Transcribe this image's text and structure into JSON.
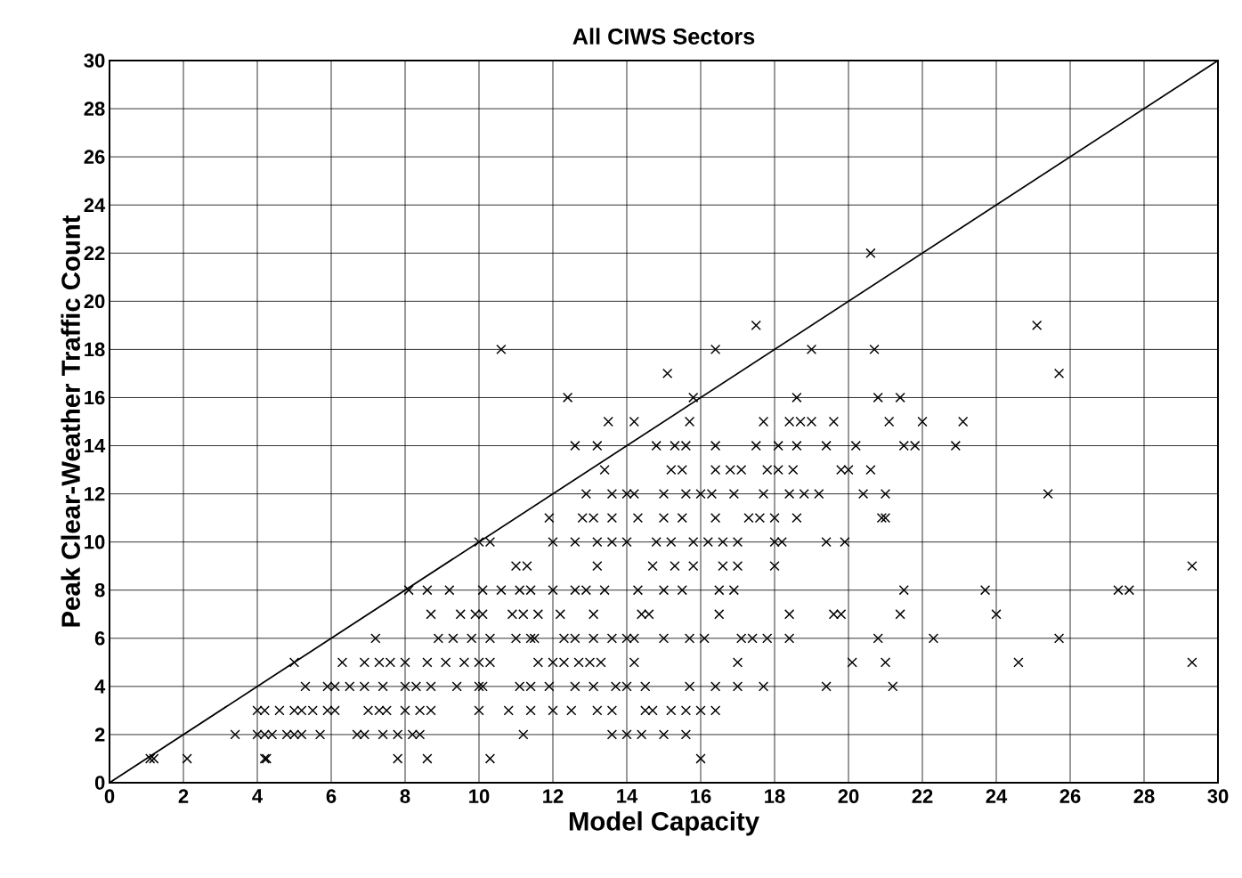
{
  "chart_data": {
    "type": "scatter",
    "title": "All CIWS Sectors",
    "xlabel": "Model Capacity",
    "ylabel": "Peak Clear-Weather Traffic Count",
    "xlim": [
      0,
      30
    ],
    "ylim": [
      0,
      30
    ],
    "xticks": [
      0,
      2,
      4,
      6,
      8,
      10,
      12,
      14,
      16,
      18,
      20,
      22,
      24,
      26,
      28,
      30
    ],
    "yticks": [
      0,
      2,
      4,
      6,
      8,
      10,
      12,
      14,
      16,
      18,
      20,
      22,
      24,
      26,
      28,
      30
    ],
    "grid": true,
    "series": [
      {
        "color": "#000000",
        "marker": "cross",
        "x": [
          1.1,
          1.2,
          2.1,
          4.2,
          4.25,
          7.8,
          8.6,
          10.3,
          16.0,
          3.4,
          4.0,
          4.2,
          4.4,
          4.8,
          5.0,
          5.2,
          5.7,
          6.7,
          6.9,
          7.4,
          7.8,
          8.2,
          8.4,
          11.2,
          13.6,
          14.0,
          14.4,
          15.0,
          15.6,
          4.0,
          4.2,
          4.6,
          5.0,
          5.2,
          5.5,
          5.9,
          6.1,
          7.0,
          7.3,
          7.5,
          8.0,
          8.4,
          8.7,
          10.0,
          10.8,
          11.4,
          12.0,
          12.5,
          13.2,
          13.6,
          14.5,
          14.7,
          15.2,
          15.6,
          16.0,
          16.4,
          5.3,
          5.9,
          6.1,
          6.5,
          6.9,
          7.4,
          8.0,
          8.3,
          8.7,
          9.4,
          10.0,
          10.1,
          11.1,
          11.4,
          11.9,
          12.6,
          13.1,
          13.7,
          14.0,
          14.5,
          15.7,
          16.4,
          17.0,
          17.7,
          19.4,
          21.2,
          5.0,
          6.3,
          6.9,
          7.3,
          7.6,
          8.0,
          8.6,
          9.1,
          9.6,
          10.0,
          10.3,
          11.6,
          12.0,
          12.3,
          12.7,
          13.0,
          13.3,
          14.2,
          17.0,
          20.1,
          21.0,
          24.6,
          29.3,
          7.2,
          8.9,
          9.3,
          9.8,
          10.3,
          11.0,
          11.4,
          11.5,
          12.3,
          12.6,
          13.1,
          13.6,
          14.0,
          14.2,
          15.0,
          15.7,
          16.1,
          17.1,
          17.4,
          17.8,
          18.4,
          20.8,
          22.3,
          25.7,
          8.7,
          9.5,
          9.9,
          10.1,
          10.9,
          11.2,
          11.6,
          12.2,
          13.1,
          14.4,
          14.6,
          16.5,
          18.4,
          19.6,
          19.8,
          21.4,
          24.0,
          8.1,
          8.6,
          9.2,
          10.1,
          10.6,
          11.1,
          11.4,
          12.0,
          12.6,
          12.9,
          13.4,
          14.3,
          15.0,
          15.5,
          16.5,
          16.9,
          21.5,
          23.7,
          27.3,
          27.6,
          11.0,
          11.3,
          13.2,
          14.7,
          15.3,
          15.8,
          16.6,
          17.0,
          18.0,
          29.3,
          10.0,
          10.3,
          12.0,
          12.6,
          13.2,
          13.6,
          14.0,
          14.8,
          15.2,
          15.8,
          16.2,
          16.6,
          17.0,
          18.0,
          18.2,
          19.4,
          19.9,
          11.9,
          12.8,
          13.1,
          13.6,
          14.3,
          15.0,
          15.5,
          16.4,
          17.3,
          17.6,
          18.0,
          18.6,
          20.9,
          21.0,
          12.9,
          13.6,
          14.0,
          14.2,
          15.0,
          15.6,
          16.0,
          16.3,
          16.9,
          17.7,
          18.4,
          18.8,
          19.2,
          20.4,
          21.0,
          25.4,
          13.4,
          15.2,
          15.5,
          16.4,
          16.8,
          17.1,
          17.8,
          18.1,
          18.5,
          19.8,
          20.0,
          20.6,
          12.6,
          13.2,
          14.8,
          15.3,
          15.6,
          16.4,
          17.5,
          18.1,
          18.6,
          19.4,
          20.2,
          21.5,
          21.8,
          22.9,
          13.5,
          14.2,
          15.7,
          17.7,
          18.4,
          18.7,
          19.0,
          19.6,
          21.1,
          22.0,
          23.1,
          12.4,
          15.8,
          18.6,
          20.8,
          21.4,
          15.1,
          25.7,
          10.6,
          16.4,
          19.0,
          20.7,
          17.5,
          25.1,
          20.6
        ],
        "values": [
          1,
          1,
          1,
          1,
          1,
          1,
          1,
          1,
          1,
          2,
          2,
          2,
          2,
          2,
          2,
          2,
          2,
          2,
          2,
          2,
          2,
          2,
          2,
          2,
          2,
          2,
          2,
          2,
          2,
          3,
          3,
          3,
          3,
          3,
          3,
          3,
          3,
          3,
          3,
          3,
          3,
          3,
          3,
          3,
          3,
          3,
          3,
          3,
          3,
          3,
          3,
          3,
          3,
          3,
          3,
          3,
          4,
          4,
          4,
          4,
          4,
          4,
          4,
          4,
          4,
          4,
          4,
          4,
          4,
          4,
          4,
          4,
          4,
          4,
          4,
          4,
          4,
          4,
          4,
          4,
          4,
          4,
          5,
          5,
          5,
          5,
          5,
          5,
          5,
          5,
          5,
          5,
          5,
          5,
          5,
          5,
          5,
          5,
          5,
          5,
          5,
          5,
          5,
          5,
          5,
          6,
          6,
          6,
          6,
          6,
          6,
          6,
          6,
          6,
          6,
          6,
          6,
          6,
          6,
          6,
          6,
          6,
          6,
          6,
          6,
          6,
          6,
          6,
          6,
          7,
          7,
          7,
          7,
          7,
          7,
          7,
          7,
          7,
          7,
          7,
          7,
          7,
          7,
          7,
          7,
          7,
          8,
          8,
          8,
          8,
          8,
          8,
          8,
          8,
          8,
          8,
          8,
          8,
          8,
          8,
          8,
          8,
          8,
          8,
          8,
          8,
          9,
          9,
          9,
          9,
          9,
          9,
          9,
          9,
          9,
          9,
          10,
          10,
          10,
          10,
          10,
          10,
          10,
          10,
          10,
          10,
          10,
          10,
          10,
          10,
          10,
          10,
          10,
          11,
          11,
          11,
          11,
          11,
          11,
          11,
          11,
          11,
          11,
          11,
          11,
          11,
          11,
          12,
          12,
          12,
          12,
          12,
          12,
          12,
          12,
          12,
          12,
          12,
          12,
          12,
          12,
          12,
          12,
          13,
          13,
          13,
          13,
          13,
          13,
          13,
          13,
          13,
          13,
          13,
          13,
          14,
          14,
          14,
          14,
          14,
          14,
          14,
          14,
          14,
          14,
          14,
          14,
          14,
          14,
          15,
          15,
          15,
          15,
          15,
          15,
          15,
          15,
          15,
          15,
          15,
          16,
          16,
          16,
          16,
          16,
          17,
          17,
          18,
          18,
          18,
          18,
          19,
          19,
          22
        ]
      },
      {
        "type": "line",
        "color": "#000000",
        "marker": "none",
        "line_style": "solid",
        "x": [
          0,
          30
        ],
        "values": [
          0,
          30
        ]
      }
    ]
  }
}
